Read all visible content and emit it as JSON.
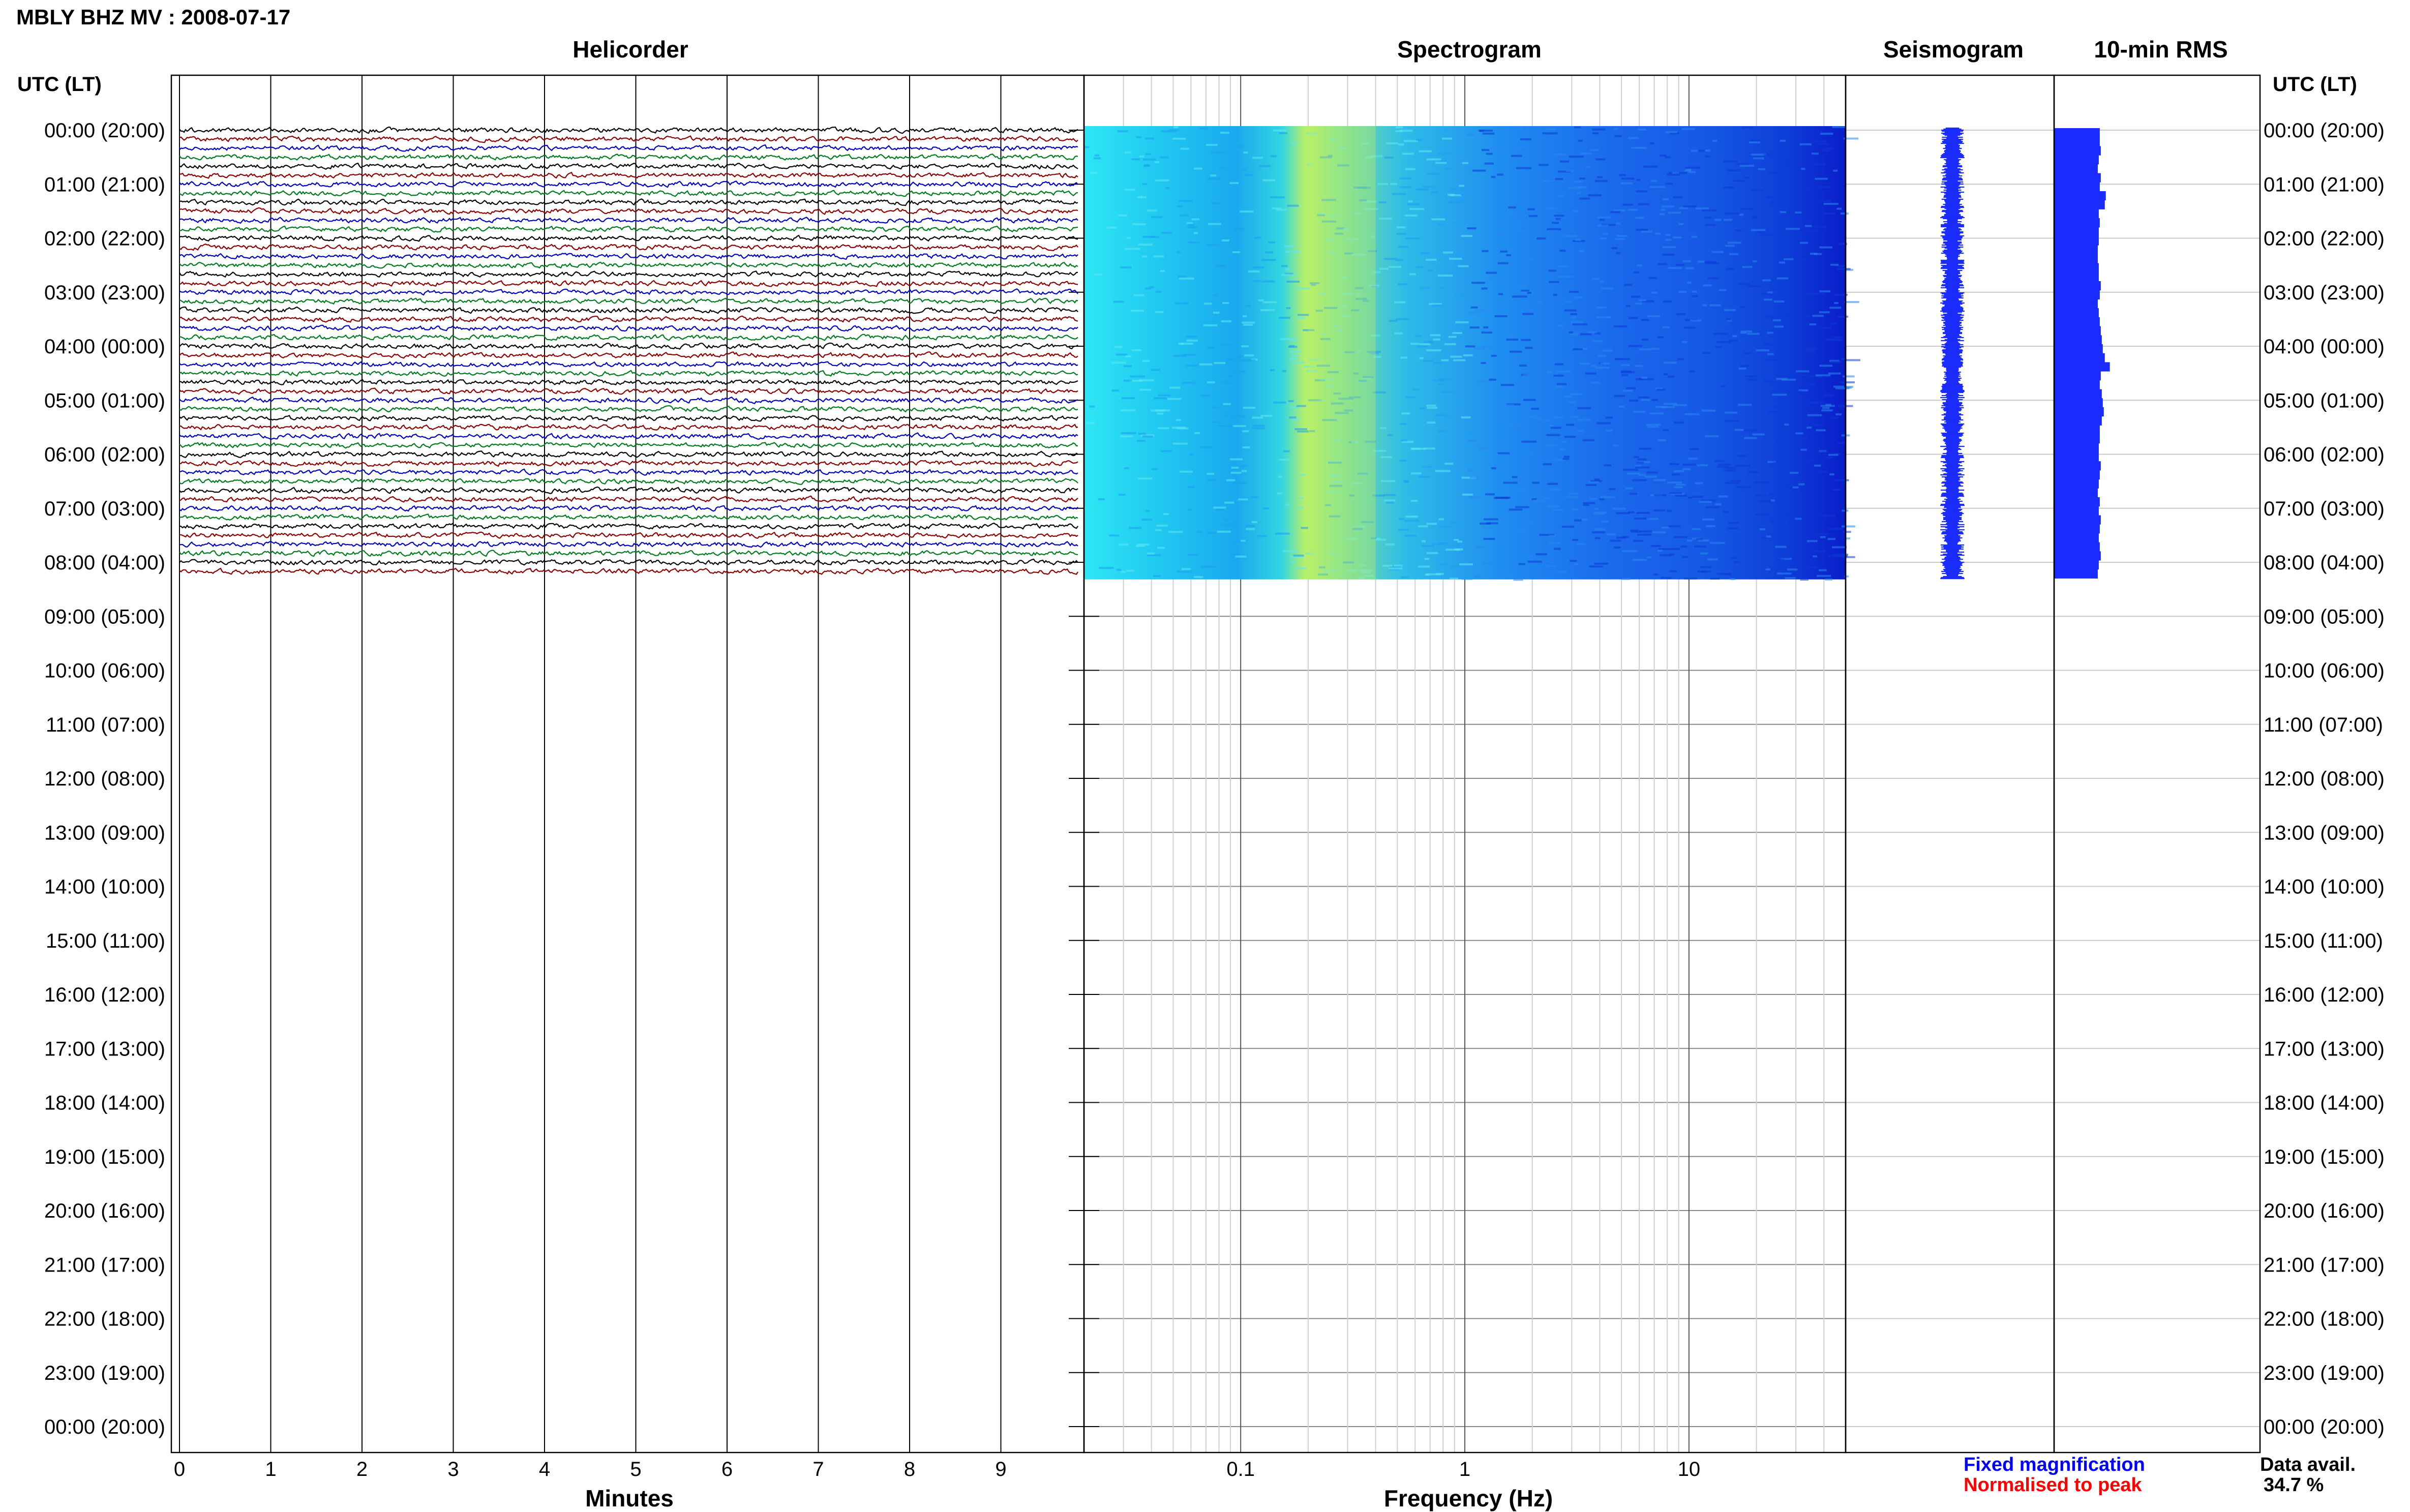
{
  "figure": {
    "title": "MBLY BHZ MV : 2008-07-17",
    "utc_header_left": "UTC (LT)",
    "utc_header_right": "UTC (LT)"
  },
  "panels": {
    "helicorder": {
      "title": "Helicorder",
      "xlabel": "Minutes"
    },
    "spectrogram": {
      "title": "Spectrogram",
      "xlabel": "Frequency (Hz)"
    },
    "seismogram": {
      "title": "Seismogram"
    },
    "rms": {
      "title": "10-min RMS"
    }
  },
  "legend": {
    "fixed": "Fixed magnification",
    "normalised": "Normalised to peak",
    "fixed_color": "#0000ff",
    "normalised_color": "#ff0000"
  },
  "availability": {
    "label": "Data avail.",
    "value": "34.7 %"
  },
  "colors": {
    "trace_cycle": [
      "#000000",
      "#8b0000",
      "#0000c0",
      "#007a1e"
    ],
    "seismogram": "#1a2cff",
    "rms": "#1a2cff"
  },
  "chart_data": [
    {
      "type": "line",
      "name": "helicorder",
      "xlabel": "Minutes",
      "x_ticks": [
        0,
        1,
        2,
        3,
        4,
        5,
        6,
        7,
        8,
        9
      ],
      "xlim": [
        0,
        10
      ],
      "y_tick_labels": [
        "00:00 (20:00)",
        "01:00 (21:00)",
        "02:00 (22:00)",
        "03:00 (23:00)",
        "04:00 (00:00)",
        "05:00 (01:00)",
        "06:00 (02:00)",
        "07:00 (03:00)",
        "08:00 (04:00)",
        "09:00 (05:00)",
        "10:00 (06:00)",
        "11:00 (07:00)",
        "12:00 (08:00)",
        "13:00 (09:00)",
        "14:00 (10:00)",
        "15:00 (11:00)",
        "16:00 (12:00)",
        "17:00 (13:00)",
        "18:00 (14:00)",
        "19:00 (15:00)",
        "20:00 (16:00)",
        "21:00 (17:00)",
        "22:00 (18:00)",
        "23:00 (19:00)",
        "00:00 (20:00)"
      ],
      "rows_with_data": 50,
      "row_minutes": 10,
      "data_end_utc": "08:20"
    },
    {
      "type": "heatmap",
      "name": "spectrogram",
      "xlabel": "Frequency (Hz)",
      "x_scale": "log",
      "x_ticks": [
        0.1,
        1,
        10
      ],
      "x_tick_labels": [
        "0.1",
        "1",
        "10"
      ],
      "xlim": [
        0.02,
        50
      ],
      "peak_band_hz": [
        0.2,
        0.4
      ],
      "data_end_utc": "08:20"
    },
    {
      "type": "line",
      "name": "seismogram",
      "data_end_utc": "08:20"
    },
    {
      "type": "bar",
      "name": "10-min RMS",
      "orientation": "horizontal",
      "values": [
        0.45,
        0.45,
        0.46,
        0.44,
        0.43,
        0.46,
        0.45,
        0.51,
        0.5,
        0.44,
        0.45,
        0.44,
        0.44,
        0.43,
        0.43,
        0.44,
        0.44,
        0.46,
        0.45,
        0.43,
        0.44,
        0.45,
        0.46,
        0.47,
        0.48,
        0.5,
        0.55,
        0.46,
        0.45,
        0.47,
        0.48,
        0.49,
        0.47,
        0.45,
        0.45,
        0.44,
        0.44,
        0.46,
        0.45,
        0.44,
        0.43,
        0.45,
        0.44,
        0.46,
        0.45,
        0.44,
        0.45,
        0.46,
        0.44,
        0.43
      ],
      "data_end_utc": "08:20"
    }
  ]
}
